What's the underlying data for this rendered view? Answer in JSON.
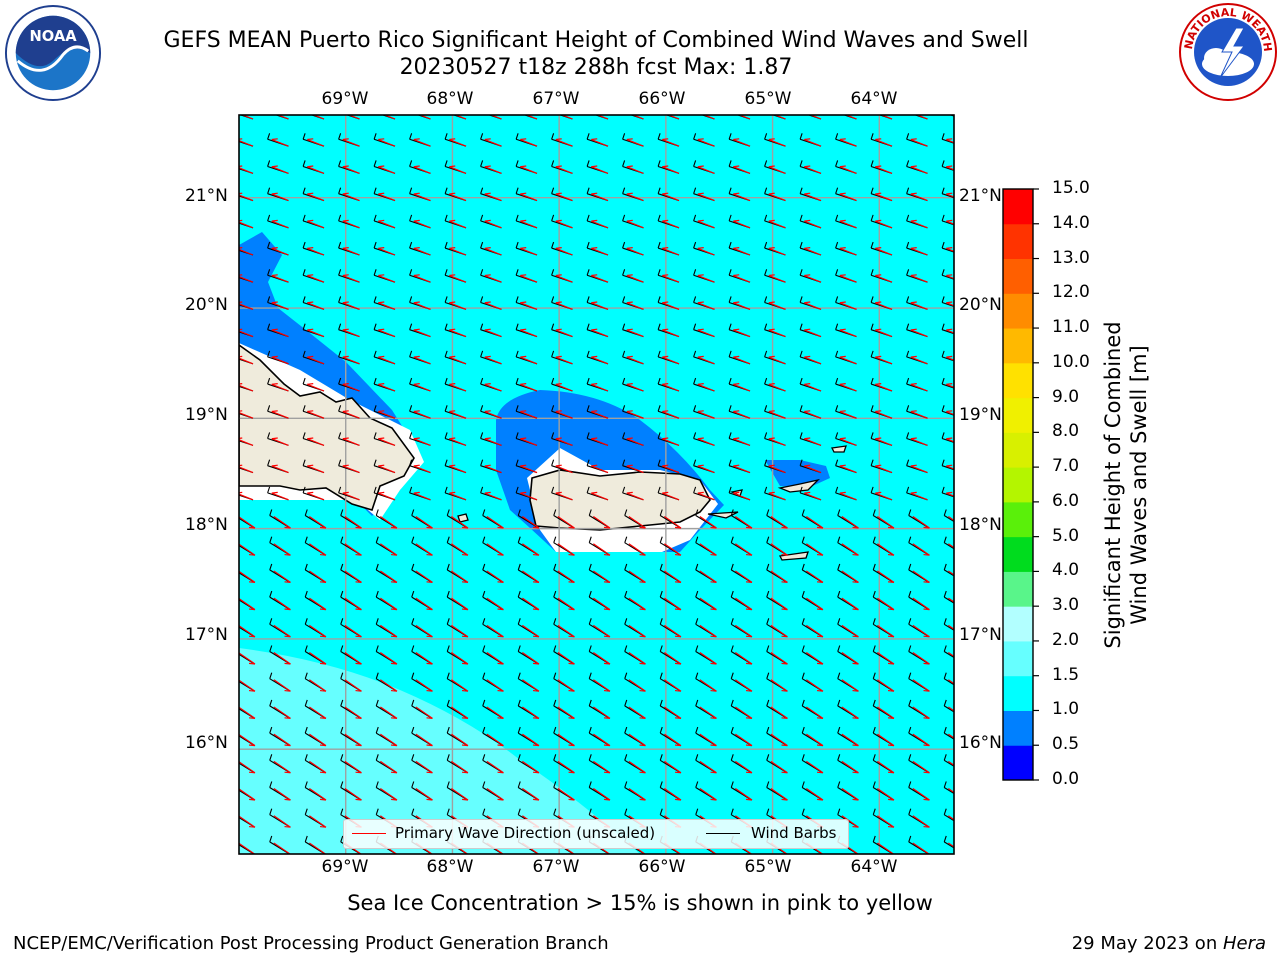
{
  "title": {
    "line1": "GEFS MEAN Puerto Rico Significant Height of Combined Wind Waves and Swell",
    "line2": "20230527 t18z 288h fcst   Max: 1.87"
  },
  "logos": {
    "noaa_text": "NOAA",
    "nws_text": "NATIONAL WEATHER SERVICE"
  },
  "map": {
    "lon_labels": [
      "69°W",
      "68°W",
      "67°W",
      "66°W",
      "65°W",
      "64°W"
    ],
    "lat_labels": [
      "21°N",
      "20°N",
      "19°N",
      "18°N",
      "17°N",
      "16°N"
    ],
    "lon_range": [
      -70,
      -63.3
    ],
    "lat_range": [
      15.05,
      21.75
    ],
    "ocean_color": "#00ffff",
    "land_color": "#efebdc",
    "elevated_wave_color": "#0080ff",
    "calm_region_color": "#66ffff",
    "wave_arrow_color": "#ff0000",
    "wind_barb_color": "#000000"
  },
  "colorbar": {
    "title_line1": "Significant Height of Combined",
    "title_line2": "Wind Waves and Swell [m]",
    "ticks": [
      "15.0",
      "14.0",
      "13.0",
      "12.0",
      "11.0",
      "10.0",
      "9.0",
      "8.0",
      "7.0",
      "6.0",
      "5.0",
      "4.0",
      "3.0",
      "2.0",
      "1.5",
      "1.0",
      "0.5",
      "0.0"
    ],
    "levels": [
      0,
      0.5,
      1.0,
      1.5,
      2.0,
      3.0,
      4.0,
      5.0,
      6.0,
      7.0,
      8.0,
      9.0,
      10.0,
      11.0,
      12.0,
      13.0,
      14.0,
      15.0
    ],
    "colors": [
      "#0000ff",
      "#0080ff",
      "#00ffff",
      "#66ffff",
      "#b2ffff",
      "#59f58a",
      "#00dc1e",
      "#5af00a",
      "#b4f500",
      "#d8f000",
      "#f0f000",
      "#ffe100",
      "#ffb900",
      "#ff8c00",
      "#ff5f00",
      "#ff3300",
      "#ff0000"
    ]
  },
  "legend": {
    "wave_label": "Primary Wave Direction (unscaled)",
    "wind_label": "Wind Barbs"
  },
  "subtitle": "Sea Ice Concentration > 15% is shown in pink to yellow",
  "footer": {
    "left": "NCEP/EMC/Verification Post Processing Product Generation Branch",
    "right_date": "29 May 2023 on ",
    "right_host": "Hera"
  }
}
